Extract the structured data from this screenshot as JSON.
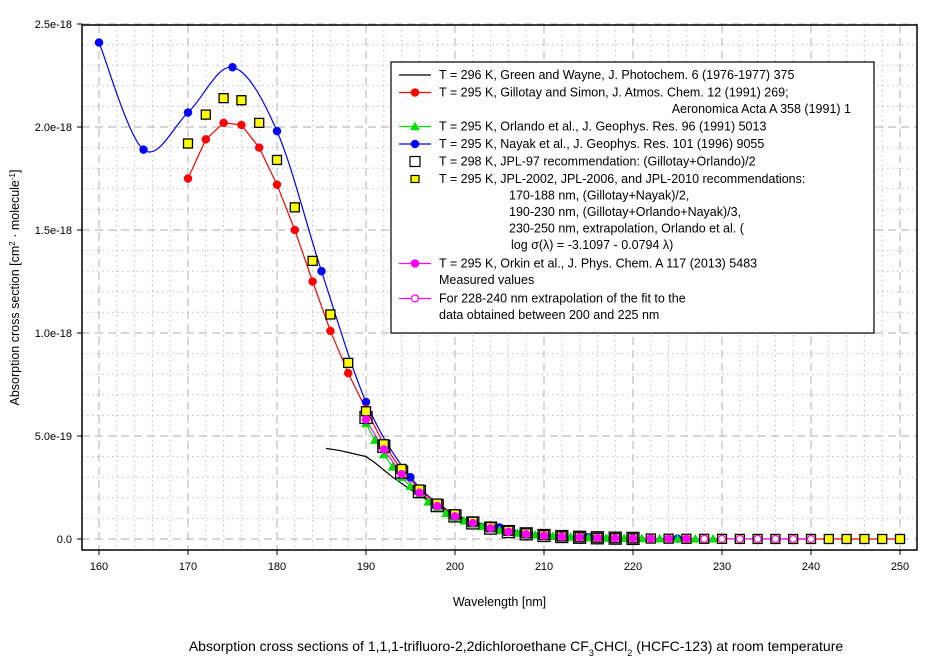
{
  "chart_data": {
    "type": "scatter",
    "title": "Absorption cross sections of 1,1,1-trifluoro-2,2dichloroethane CF3CHCl2 (HCFC-123) at room temperature",
    "caption_parts": {
      "prefix": "Absorption cross sections of 1,1,1-trifluoro-2,2dichloroethane CF",
      "sub1": "3",
      "mid": "CHCl",
      "sub2": "2",
      "suffix": " (HCFC-123) at room temperature"
    },
    "xlabel": "Wavelength [nm]",
    "ylabel_parts": {
      "prefix": "Absorption cross section [cm",
      "sup1": "2",
      "mid": " · molecule",
      "sup2": "-1",
      "suffix": "]"
    },
    "xlim": [
      158,
      252
    ],
    "ylim": [
      0,
      2.5e-18
    ],
    "grid": true,
    "x_ticks": [
      160,
      170,
      180,
      190,
      200,
      210,
      220,
      230,
      240,
      250
    ],
    "x_tick_labels": [
      "160",
      "170",
      "180",
      "190",
      "200",
      "210",
      "220",
      "230",
      "240",
      "250"
    ],
    "y_ticks": [
      0,
      5e-19,
      1e-18,
      1.5e-18,
      2e-18,
      2.5e-18
    ],
    "y_tick_labels": [
      "0.0",
      "5.0e-19",
      "1.0e-18",
      "1.5e-18",
      "2.0e-18",
      "2.5e-18"
    ],
    "legend_position": "top-right",
    "series": [
      {
        "name": "T = 296 K, Green and Wayne, J. Photochem. 6 (1976-1977) 375",
        "legend_lines": [
          "T = 296 K, Green and Wayne, J. Photochem. 6 (1976-1977) 375"
        ],
        "color": "#000000",
        "marker": "none",
        "line": true,
        "x": [
          185.5,
          187,
          188.5,
          190,
          191,
          192,
          193,
          194,
          195,
          196,
          197,
          198,
          199,
          200,
          201,
          202,
          203,
          204
        ],
        "y": [
          4.4e-19,
          4.3e-19,
          4.15e-19,
          4e-19,
          3.7e-19,
          3.35e-19,
          3e-19,
          2.7e-19,
          2.4e-19,
          2.15e-19,
          1.9e-19,
          1.62e-19,
          1.4e-19,
          1.2e-19,
          1e-19,
          8.5e-20,
          7e-20,
          5.5e-20
        ]
      },
      {
        "name": "T = 295 K, Gillotay and Simon, J. Atmos. Chem. 12 (1991) 269; Aeronomica Acta A 358 (1991) 1",
        "legend_lines": [
          "T = 295 K, Gillotay and Simon, J. Atmos. Chem. 12 (1991) 269;",
          "Aeronomica Acta A 358 (1991) 1"
        ],
        "color": "#ff0000",
        "marker": "circle",
        "line": true,
        "x": [
          170,
          172,
          174,
          176,
          178,
          180,
          182,
          184,
          186,
          188,
          190,
          192,
          194,
          196,
          198,
          200,
          202,
          204,
          206,
          208,
          210,
          212,
          214,
          216,
          218,
          220,
          222,
          224,
          226,
          228,
          230,
          232,
          234,
          236,
          238,
          240,
          242,
          244,
          246,
          248,
          250
        ],
        "y": [
          1.75e-18,
          1.94e-18,
          2.02e-18,
          2.01e-18,
          1.9e-18,
          1.72e-18,
          1.5e-18,
          1.25e-18,
          1.01e-18,
          8.05e-19,
          6.3e-19,
          4.6e-19,
          3.35e-19,
          2.4e-19,
          1.7e-19,
          1.18e-19,
          8.2e-20,
          5.6e-20,
          3.8e-20,
          2.6e-20,
          1.8e-20,
          1.25e-20,
          9e-21,
          6e-21,
          4.3e-21,
          3e-21,
          2.2e-21,
          1.6e-21,
          1.1e-21,
          8e-22,
          6e-22,
          4e-22,
          3e-22,
          2e-22,
          1.5e-22,
          1e-22,
          7e-23,
          5e-23,
          3.5e-23,
          2.5e-23,
          1.8e-23
        ]
      },
      {
        "name": "T = 295 K, Orlando et al., J. Geophys. Res. 96 (1991) 5013",
        "legend_lines": [
          "T = 295 K, Orlando et al., J. Geophys. Res. 96 (1991) 5013"
        ],
        "color": "#00e000",
        "marker": "triangle",
        "line": true,
        "x": [
          190,
          191,
          192,
          193,
          194,
          195,
          196,
          197,
          198,
          199,
          200,
          201,
          202,
          203,
          204,
          205,
          206,
          207,
          208,
          209,
          210,
          211,
          212,
          213,
          214,
          215,
          216,
          217,
          218,
          219,
          220,
          221,
          222,
          223,
          224,
          225,
          226,
          227,
          228,
          229,
          230
        ],
        "y": [
          5.6e-19,
          4.8e-19,
          4.1e-19,
          3.5e-19,
          3e-19,
          2.55e-19,
          2.15e-19,
          1.8e-19,
          1.5e-19,
          1.25e-19,
          1.05e-19,
          8.8e-20,
          7.3e-20,
          6.1e-20,
          5e-20,
          4.2e-20,
          3.5e-20,
          2.9e-20,
          2.4e-20,
          2e-20,
          1.65e-20,
          1.4e-20,
          1.15e-20,
          9.5e-21,
          8e-21,
          6.6e-21,
          5.5e-21,
          4.6e-21,
          3.8e-21,
          3.2e-21,
          2.7e-21,
          2.2e-21,
          1.8e-21,
          1.5e-21,
          1.25e-21,
          1.05e-21,
          8.8e-22,
          7.3e-22,
          6.1e-22,
          5e-22,
          4.2e-22
        ]
      },
      {
        "name": "T = 295 K, Nayak et al., J. Geophys. Res. 101 (1996) 9055",
        "legend_lines": [
          "T = 295 K, Nayak et al., J. Geophys. Res. 101 (1996) 9055"
        ],
        "color": "#0000ff",
        "marker": "circle",
        "line": true,
        "smooth": true,
        "x": [
          160,
          165,
          170,
          175,
          180,
          185,
          190,
          195,
          200,
          205,
          210,
          215,
          220,
          225
        ],
        "y": [
          2.41e-18,
          1.89e-18,
          2.07e-18,
          2.29e-18,
          1.98e-18,
          1.3e-18,
          6.65e-19,
          3e-19,
          1.2e-19,
          5.6e-20,
          2.2e-20,
          9e-21,
          4e-21,
          1.8e-21
        ]
      },
      {
        "name": "T = 298 K, JPL-97 recommendation: (Gillotay+Orlando)/2",
        "legend_lines": [
          "T = 298 K, JPL-97 recommendation: (Gillotay+Orlando)/2"
        ],
        "color": "#000000",
        "fill": "none",
        "marker": "square-open",
        "line": false,
        "x": [
          190,
          192,
          194,
          196,
          198,
          200,
          202,
          204,
          206,
          208,
          210,
          212,
          214,
          216,
          218,
          220
        ],
        "y": [
          5.9e-19,
          4.5e-19,
          3.25e-19,
          2.3e-19,
          1.62e-19,
          1.12e-19,
          7.8e-20,
          5.3e-20,
          3.6e-20,
          2.5e-20,
          1.7e-20,
          1.2e-20,
          8.5e-21,
          5.8e-21,
          4.1e-21,
          2.9e-21
        ]
      },
      {
        "name": "T = 295 K, JPL-2002, JPL-2006, and JPL-2010 recommendations",
        "legend_lines": [
          "T = 295 K, JPL-2002, JPL-2006, and JPL-2010 recommendations:",
          "170-188 nm, (Gillotay+Nayak)/2,",
          "190-230 nm, (Gillotay+Orlando+Nayak)/3,",
          "230-250 nm, extrapolation, Orlando et al. (",
          "log σ(λ) = -3.1097 - 0.0794 λ)"
        ],
        "color": "#ffff00",
        "marker": "square-filled",
        "line": false,
        "x": [
          170,
          172,
          174,
          176,
          178,
          180,
          182,
          184,
          186,
          188,
          190,
          192,
          194,
          196,
          198,
          200,
          202,
          204,
          206,
          208,
          210,
          212,
          214,
          216,
          218,
          220,
          222,
          224,
          226,
          228,
          230,
          232,
          234,
          236,
          238,
          240,
          242,
          244,
          246,
          248,
          250
        ],
        "y": [
          1.92e-18,
          2.06e-18,
          2.14e-18,
          2.13e-18,
          2.02e-18,
          1.84e-18,
          1.61e-18,
          1.35e-18,
          1.09e-18,
          8.55e-19,
          6.2e-19,
          4.6e-19,
          3.4e-19,
          2.4e-19,
          1.72e-19,
          1.2e-19,
          8.4e-20,
          5.8e-20,
          4e-20,
          2.8e-20,
          1.9e-20,
          1.3e-20,
          9e-21,
          6.2e-21,
          4.4e-21,
          3.1e-21,
          2.2e-21,
          1.6e-21,
          1.1e-21,
          8e-22,
          5.7e-22,
          4e-22,
          2.9e-22,
          2e-22,
          1.4e-22,
          1e-22,
          7e-23,
          5e-23,
          3.5e-23,
          2.5e-23,
          1.8e-23
        ]
      },
      {
        "name": "T = 295 K, Orkin et al., J. Phys. Chem. A 117 (2013) 5483 Measured values",
        "legend_lines": [
          "T = 295 K, Orkin et al., J. Phys. Chem. A 117 (2013) 5483",
          "Measured values"
        ],
        "color": "#ff00ff",
        "marker": "circle",
        "line": true,
        "x": [
          190,
          192,
          194,
          196,
          198,
          200,
          202,
          204,
          206,
          208,
          210,
          212,
          214,
          216,
          218,
          220,
          222,
          224,
          226,
          228
        ],
        "y": [
          5.8e-19,
          4.35e-19,
          3.15e-19,
          2.25e-19,
          1.6e-19,
          1.1e-19,
          7.7e-20,
          5.2e-20,
          3.5e-20,
          2.4e-20,
          1.65e-20,
          1.15e-20,
          8e-21,
          5.5e-21,
          3.9e-21,
          2.7e-21,
          1.9e-21,
          1.35e-21,
          9.5e-22,
          6.7e-22
        ]
      },
      {
        "name": "For 228-240 nm extrapolation of the fit to the data obtained between 200 and 225 nm",
        "legend_lines": [
          "For 228-240 nm extrapolation of the fit to the",
          "data obtained between 200 and 225 nm"
        ],
        "color": "#ff00ff",
        "marker": "circle",
        "line": true,
        "x": [
          228,
          230,
          232,
          234,
          236,
          238,
          240
        ],
        "y": [
          6.7e-22,
          4.7e-22,
          3.3e-22,
          2.3e-22,
          1.6e-22,
          1.1e-22,
          8e-23
        ]
      }
    ]
  }
}
